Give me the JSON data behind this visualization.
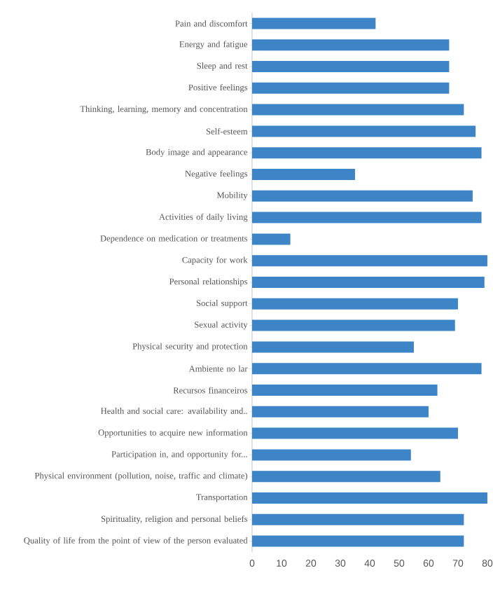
{
  "chart_data": {
    "type": "bar",
    "orientation": "horizontal",
    "color": "#3d85c6",
    "categories": [
      "Pain and discomfort",
      "Energy and fatigue",
      "Sleep and rest",
      "Positive feelings",
      "Thinking, learning, memory and concentration",
      "Self-esteem",
      "Body image and appearance",
      "Negative feelings",
      "Mobility",
      "Activities of daily living",
      "Dependence on medication or treatments",
      "Capacity for work",
      "Personal relationships",
      "Social support",
      "Sexual activity",
      "Physical security and protection",
      "Ambiente no lar",
      "Recursos financeiros",
      "Health and social care: availability and..",
      "Opportunities to acquire new information",
      "Participation in, and opportunity for...",
      "Physical environment (pollution, noise, traffic and climate)",
      "Transportation",
      "Spirituality, religion and personal beliefs",
      "Quality of life from the point of view of the person evaluated"
    ],
    "values": [
      42,
      67,
      67,
      67,
      72,
      76,
      78,
      35,
      75,
      78,
      13,
      80,
      79,
      70,
      69,
      55,
      78,
      63,
      60,
      70,
      54,
      64,
      80,
      72,
      72
    ],
    "xlim": [
      0,
      80
    ],
    "xticks": [
      0,
      10,
      20,
      30,
      40,
      50,
      60,
      70,
      80
    ]
  }
}
